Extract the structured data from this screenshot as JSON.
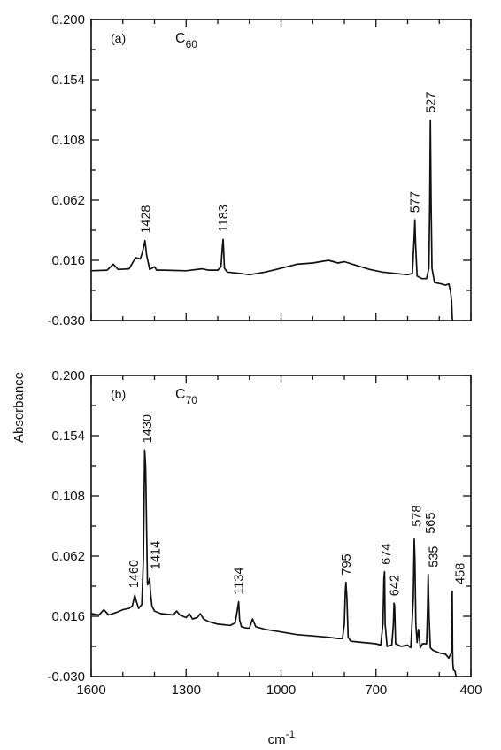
{
  "chart_data": [
    {
      "type": "line",
      "panel_label": "(a)",
      "compound": {
        "base": "C",
        "sub": "60"
      },
      "ylim": [
        -0.03,
        0.2
      ],
      "yticks": [
        "0.200",
        "0.154",
        "0.108",
        "0.062",
        "0.016",
        "-0.030"
      ],
      "xlim": [
        1600,
        400
      ],
      "baseline": [
        [
          1600,
          0.008
        ],
        [
          1550,
          0.0085
        ],
        [
          1530,
          0.013
        ],
        [
          1515,
          0.009
        ],
        [
          1480,
          0.0095
        ],
        [
          1460,
          0.018
        ],
        [
          1445,
          0.017
        ],
        [
          1438,
          0.022
        ],
        [
          1430,
          0.031
        ],
        [
          1425,
          0.02
        ],
        [
          1415,
          0.009
        ],
        [
          1400,
          0.011
        ],
        [
          1393,
          0.0085
        ],
        [
          1370,
          0.0085
        ],
        [
          1300,
          0.008
        ],
        [
          1250,
          0.0095
        ],
        [
          1230,
          0.0085
        ],
        [
          1200,
          0.0085
        ],
        [
          1190,
          0.011
        ],
        [
          1185,
          0.028
        ],
        [
          1183,
          0.032
        ],
        [
          1179,
          0.01
        ],
        [
          1170,
          0.007
        ],
        [
          1130,
          0.006
        ],
        [
          1100,
          0.005
        ],
        [
          1050,
          0.007
        ],
        [
          1000,
          0.01
        ],
        [
          950,
          0.013
        ],
        [
          900,
          0.014
        ],
        [
          850,
          0.016
        ],
        [
          820,
          0.014
        ],
        [
          800,
          0.015
        ],
        [
          760,
          0.012
        ],
        [
          720,
          0.009
        ],
        [
          680,
          0.007
        ],
        [
          640,
          0.006
        ],
        [
          600,
          0.005
        ],
        [
          585,
          0.006
        ],
        [
          579,
          0.035
        ],
        [
          577,
          0.047
        ],
        [
          575,
          0.03
        ],
        [
          570,
          0.004
        ],
        [
          555,
          0.002
        ],
        [
          540,
          0.002
        ],
        [
          533,
          0.01
        ],
        [
          530,
          0.06
        ],
        [
          528,
          0.123
        ],
        [
          526,
          0.06
        ],
        [
          523,
          0.01
        ],
        [
          515,
          -0.001
        ],
        [
          495,
          -0.002
        ],
        [
          480,
          -0.003
        ],
        [
          470,
          -0.002
        ],
        [
          465,
          -0.007
        ],
        [
          461,
          -0.015
        ],
        [
          459,
          -0.028
        ],
        [
          458,
          -0.03
        ]
      ],
      "peaks": [
        {
          "label": "1428",
          "x": 1428,
          "y": 0.031
        },
        {
          "label": "1183",
          "x": 1183,
          "y": 0.032
        },
        {
          "label": "577",
          "x": 577,
          "y": 0.047
        },
        {
          "label": "527",
          "x": 527,
          "y": 0.123
        }
      ]
    },
    {
      "type": "line",
      "panel_label": "(b)",
      "compound": {
        "base": "C",
        "sub": "70"
      },
      "ylim": [
        -0.03,
        0.2
      ],
      "yticks": [
        "0.200",
        "0.154",
        "0.108",
        "0.062",
        "0.016",
        "-0.030"
      ],
      "xlim": [
        1600,
        400
      ],
      "xticks": [
        "1600",
        "1300",
        "1000",
        "700",
        "400"
      ],
      "xlabel": {
        "base": "cm",
        "sup": "-1"
      },
      "baseline": [
        [
          1600,
          0.018
        ],
        [
          1575,
          0.017
        ],
        [
          1560,
          0.021
        ],
        [
          1545,
          0.017
        ],
        [
          1520,
          0.019
        ],
        [
          1500,
          0.021
        ],
        [
          1480,
          0.022
        ],
        [
          1470,
          0.024
        ],
        [
          1462,
          0.032
        ],
        [
          1458,
          0.028
        ],
        [
          1450,
          0.022
        ],
        [
          1440,
          0.025
        ],
        [
          1435,
          0.06
        ],
        [
          1431,
          0.143
        ],
        [
          1428,
          0.13
        ],
        [
          1422,
          0.04
        ],
        [
          1418,
          0.042
        ],
        [
          1415,
          0.045
        ],
        [
          1413,
          0.035
        ],
        [
          1408,
          0.024
        ],
        [
          1400,
          0.02
        ],
        [
          1380,
          0.018
        ],
        [
          1340,
          0.017
        ],
        [
          1330,
          0.02
        ],
        [
          1320,
          0.017
        ],
        [
          1300,
          0.015
        ],
        [
          1290,
          0.018
        ],
        [
          1280,
          0.014
        ],
        [
          1265,
          0.015
        ],
        [
          1255,
          0.018
        ],
        [
          1245,
          0.014
        ],
        [
          1230,
          0.012
        ],
        [
          1200,
          0.01
        ],
        [
          1160,
          0.009
        ],
        [
          1145,
          0.011
        ],
        [
          1136,
          0.024
        ],
        [
          1134,
          0.027
        ],
        [
          1131,
          0.013
        ],
        [
          1125,
          0.008
        ],
        [
          1110,
          0.007
        ],
        [
          1100,
          0.007
        ],
        [
          1090,
          0.014
        ],
        [
          1080,
          0.008
        ],
        [
          1050,
          0.006
        ],
        [
          1000,
          0.004
        ],
        [
          950,
          0.002
        ],
        [
          900,
          0.001
        ],
        [
          850,
          0.0
        ],
        [
          820,
          -0.001
        ],
        [
          806,
          -0.001
        ],
        [
          800,
          0.01
        ],
        [
          797,
          0.035
        ],
        [
          795,
          0.042
        ],
        [
          792,
          0.03
        ],
        [
          788,
          0.0
        ],
        [
          780,
          -0.003
        ],
        [
          740,
          -0.004
        ],
        [
          700,
          -0.005
        ],
        [
          685,
          -0.006
        ],
        [
          678,
          0.01
        ],
        [
          675,
          0.045
        ],
        [
          673,
          0.05
        ],
        [
          671,
          0.01
        ],
        [
          665,
          -0.007
        ],
        [
          650,
          -0.006
        ],
        [
          645,
          0.01
        ],
        [
          643,
          0.026
        ],
        [
          641,
          0.024
        ],
        [
          638,
          -0.005
        ],
        [
          620,
          -0.007
        ],
        [
          600,
          -0.006
        ],
        [
          590,
          -0.008
        ],
        [
          582,
          0.03
        ],
        [
          579,
          0.075
        ],
        [
          577,
          0.06
        ],
        [
          574,
          0.01
        ],
        [
          570,
          -0.004
        ],
        [
          566,
          0.006
        ],
        [
          564,
          0.003
        ],
        [
          560,
          -0.008
        ],
        [
          553,
          -0.005
        ],
        [
          540,
          -0.005
        ],
        [
          537,
          0.02
        ],
        [
          535,
          0.048
        ],
        [
          532,
          0.015
        ],
        [
          528,
          -0.008
        ],
        [
          520,
          -0.01
        ],
        [
          500,
          -0.012
        ],
        [
          480,
          -0.013
        ],
        [
          470,
          -0.016
        ],
        [
          462,
          -0.012
        ],
        [
          460,
          0.02
        ],
        [
          459,
          0.035
        ],
        [
          458,
          -0.01
        ],
        [
          457,
          -0.02
        ],
        [
          455,
          -0.025
        ],
        [
          450,
          -0.026
        ],
        [
          447,
          -0.03
        ]
      ],
      "peaks": [
        {
          "label": "1460",
          "x": 1460,
          "y": 0.032
        },
        {
          "label": "1430",
          "x": 1430,
          "y": 0.143
        },
        {
          "label": "1414",
          "x": 1414,
          "y": 0.045
        },
        {
          "label": "1134",
          "x": 1134,
          "y": 0.027
        },
        {
          "label": "795",
          "x": 795,
          "y": 0.042
        },
        {
          "label": "674",
          "x": 674,
          "y": 0.05
        },
        {
          "label": "642",
          "x": 642,
          "y": 0.026
        },
        {
          "label": "578",
          "x": 578,
          "y": 0.075
        },
        {
          "label": "565",
          "x": 565,
          "y": 0.006
        },
        {
          "label": "535",
          "x": 535,
          "y": 0.048
        },
        {
          "label": "458",
          "x": 458,
          "y": 0.035
        }
      ]
    }
  ],
  "ylabel": "Absorbance"
}
